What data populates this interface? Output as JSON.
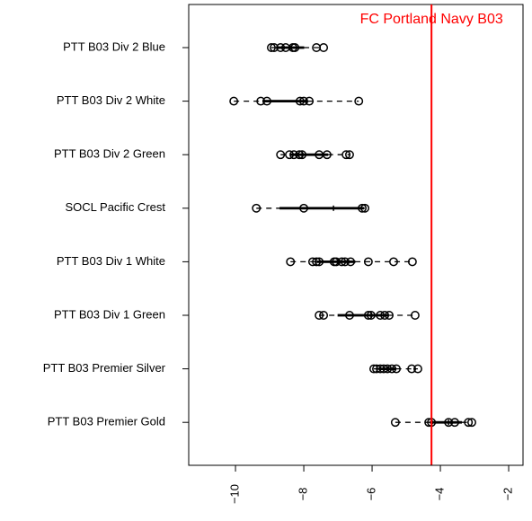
{
  "chart_data": {
    "type": "boxplot",
    "categories": [
      "PTT B03 Div 2 Blue",
      "PTT B03 Div 2 White",
      "PTT B03 Div 2 Green",
      "SOCL Pacific Crest",
      "PTT B03 Div 1 White",
      "PTT B03 Div 1 Green",
      "PTT B03 Premier Silver",
      "PTT B03 Premier Gold"
    ],
    "points": [
      [
        -8.95,
        -8.87,
        -8.68,
        -8.53,
        -8.32,
        -8.26,
        -7.63,
        -7.42
      ],
      [
        -10.05,
        -9.26,
        -9.08,
        -8.11,
        -8.0,
        -7.84,
        -6.39
      ],
      [
        -8.68,
        -8.42,
        -8.29,
        -8.13,
        -8.05,
        -7.55,
        -7.32,
        -6.76,
        -6.66
      ],
      [
        -9.39,
        -8.0,
        -6.29,
        -6.21
      ],
      [
        -8.39,
        -7.74,
        -7.63,
        -7.55,
        -7.11,
        -7.05,
        -6.89,
        -6.79,
        -6.63,
        -6.11,
        -5.37,
        -4.82
      ],
      [
        -7.55,
        -7.42,
        -6.66,
        -6.11,
        -6.03,
        -5.76,
        -5.63,
        -5.5,
        -4.74
      ],
      [
        -5.95,
        -5.87,
        -5.76,
        -5.66,
        -5.55,
        -5.42,
        -5.29,
        -4.84,
        -4.66
      ],
      [
        -5.32,
        -4.34,
        -4.26,
        -3.76,
        -3.58,
        -3.18,
        -3.08
      ]
    ],
    "boxes": [
      {
        "low": -8.95,
        "q1": -8.8,
        "median": -8.4,
        "q3": -8.0,
        "high": -7.42
      },
      {
        "low": -10.05,
        "q1": -9.2,
        "median": -8.1,
        "q3": -7.9,
        "high": -6.39
      },
      {
        "low": -8.68,
        "q1": -8.4,
        "median": -8.05,
        "q3": -7.3,
        "high": -6.66
      },
      {
        "low": -9.39,
        "q1": -8.7,
        "median": -7.13,
        "q3": -6.25,
        "high": -6.21
      },
      {
        "low": -8.39,
        "q1": -7.6,
        "median": -6.97,
        "q3": -6.5,
        "high": -4.82
      },
      {
        "low": -7.55,
        "q1": -7.0,
        "median": -6.03,
        "q3": -5.55,
        "high": -4.74
      },
      {
        "low": -5.95,
        "q1": -5.8,
        "median": -5.55,
        "q3": -5.3,
        "high": -4.66
      },
      {
        "low": -5.32,
        "q1": -4.3,
        "median": -3.76,
        "q3": -3.38,
        "high": -3.08
      }
    ],
    "xlim": [
      -11.37,
      -1.58
    ],
    "xticks": [
      {
        "value": -10,
        "label": "−10"
      },
      {
        "value": -8,
        "label": "−8"
      },
      {
        "value": -6,
        "label": "−6"
      },
      {
        "value": -4,
        "label": "−4"
      },
      {
        "value": -2,
        "label": "−2"
      }
    ],
    "reference_line": {
      "value": -4.26,
      "label": "FC Portland Navy B03",
      "color": "#ff0000"
    }
  }
}
